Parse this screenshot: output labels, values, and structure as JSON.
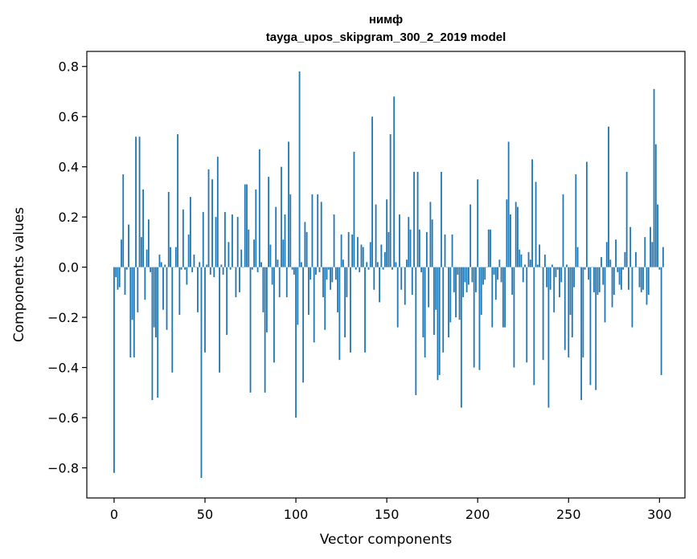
{
  "chart_data": {
    "type": "bar",
    "title": "нимф",
    "subtitle": "tayga_upos_skipgram_300_2_2019 model",
    "xlabel": "Vector components",
    "ylabel": "Components values",
    "xlim": [
      -15,
      314
    ],
    "ylim": [
      -0.92,
      0.86
    ],
    "xticks": [
      0,
      50,
      100,
      150,
      200,
      250,
      300
    ],
    "yticks": [
      -0.8,
      -0.6,
      -0.4,
      -0.2,
      0.0,
      0.2,
      0.4,
      0.6,
      0.8
    ],
    "ytick_labels": [
      "−0.8",
      "−0.6",
      "−0.4",
      "−0.2",
      "0.0",
      "0.2",
      "0.4",
      "0.6",
      "0.8"
    ],
    "grid": false,
    "color": "#1f77b4",
    "values": [
      -0.82,
      -0.04,
      -0.09,
      -0.08,
      0.11,
      0.37,
      -0.11,
      -0.01,
      0.17,
      -0.36,
      -0.21,
      -0.36,
      0.52,
      -0.18,
      0.52,
      0.12,
      0.31,
      -0.13,
      0.07,
      0.19,
      -0.02,
      -0.53,
      -0.24,
      -0.28,
      -0.52,
      0.05,
      0.02,
      -0.17,
      0.01,
      -0.25,
      0.3,
      0.08,
      -0.42,
      0.0,
      0.08,
      0.53,
      -0.19,
      -0.01,
      0.23,
      -0.01,
      -0.07,
      0.13,
      0.28,
      -0.02,
      0.05,
      0.0,
      -0.18,
      0.02,
      -0.84,
      0.22,
      -0.34,
      0.01,
      0.39,
      -0.03,
      0.35,
      -0.04,
      0.2,
      0.44,
      -0.42,
      0.01,
      -0.03,
      0.22,
      -0.27,
      0.1,
      -0.01,
      0.21,
      0.0,
      -0.12,
      0.2,
      -0.1,
      0.07,
      0.0,
      0.33,
      0.33,
      0.15,
      -0.5,
      -0.01,
      0.11,
      0.31,
      -0.02,
      0.47,
      0.02,
      -0.18,
      -0.5,
      -0.26,
      0.36,
      0.09,
      -0.07,
      -0.38,
      0.24,
      0.03,
      -0.12,
      0.4,
      0.11,
      0.21,
      -0.12,
      0.5,
      0.29,
      -0.01,
      -0.03,
      -0.6,
      -0.23,
      0.78,
      0.02,
      -0.46,
      0.18,
      0.14,
      -0.19,
      -0.05,
      0.29,
      -0.3,
      -0.03,
      0.29,
      -0.02,
      0.26,
      -0.12,
      -0.25,
      -0.05,
      -0.01,
      -0.09,
      -0.06,
      0.21,
      -0.05,
      -0.18,
      -0.37,
      0.13,
      0.03,
      -0.28,
      -0.12,
      0.14,
      -0.34,
      0.13,
      0.46,
      -0.01,
      0.12,
      -0.02,
      0.09,
      0.08,
      -0.34,
      0.02,
      -0.01,
      0.1,
      0.6,
      -0.09,
      0.25,
      0.02,
      -0.14,
      0.09,
      -0.01,
      0.06,
      0.27,
      0.14,
      0.53,
      -0.01,
      0.68,
      0.02,
      -0.24,
      0.21,
      -0.09,
      0.0,
      -0.15,
      0.03,
      0.2,
      0.15,
      -0.11,
      0.38,
      -0.51,
      0.38,
      0.15,
      -0.02,
      -0.28,
      -0.36,
      0.14,
      -0.16,
      0.26,
      0.19,
      -0.27,
      -0.17,
      -0.45,
      -0.43,
      0.38,
      -0.34,
      0.13,
      0.0,
      -0.28,
      -0.22,
      0.13,
      -0.1,
      -0.2,
      -0.03,
      -0.21,
      -0.56,
      -0.12,
      -0.06,
      -0.1,
      -0.07,
      0.25,
      -0.06,
      -0.4,
      -0.1,
      0.35,
      -0.41,
      -0.19,
      -0.07,
      -0.05,
      0.0,
      0.15,
      0.15,
      -0.24,
      -0.03,
      -0.13,
      -0.05,
      0.03,
      -0.06,
      -0.24,
      -0.24,
      0.27,
      0.5,
      0.21,
      -0.11,
      -0.4,
      0.26,
      0.24,
      0.07,
      0.05,
      -0.06,
      0.01,
      -0.38,
      0.06,
      0.03,
      0.43,
      -0.47,
      0.34,
      0.01,
      0.09,
      0.0,
      -0.37,
      0.05,
      -0.08,
      -0.56,
      -0.09,
      0.01,
      -0.18,
      -0.04,
      -0.01,
      -0.12,
      -0.06,
      0.29,
      -0.33,
      0.01,
      -0.36,
      -0.19,
      -0.28,
      -0.08,
      0.37,
      0.08,
      0.0,
      -0.53,
      -0.36,
      -0.01,
      0.42,
      -0.05,
      -0.47,
      0.0,
      -0.1,
      -0.49,
      -0.11,
      -0.1,
      0.04,
      -0.07,
      -0.22,
      0.1,
      0.56,
      0.03,
      -0.16,
      -0.11,
      0.11,
      -0.02,
      -0.07,
      -0.09,
      -0.01,
      0.06,
      0.38,
      -0.09,
      0.16,
      -0.24,
      0.0,
      0.06,
      0.0,
      -0.08,
      -0.1,
      -0.09,
      0.12,
      -0.15,
      -0.11,
      0.16,
      0.1,
      0.71,
      0.49,
      0.25,
      -0.01,
      -0.43,
      0.08
    ]
  }
}
